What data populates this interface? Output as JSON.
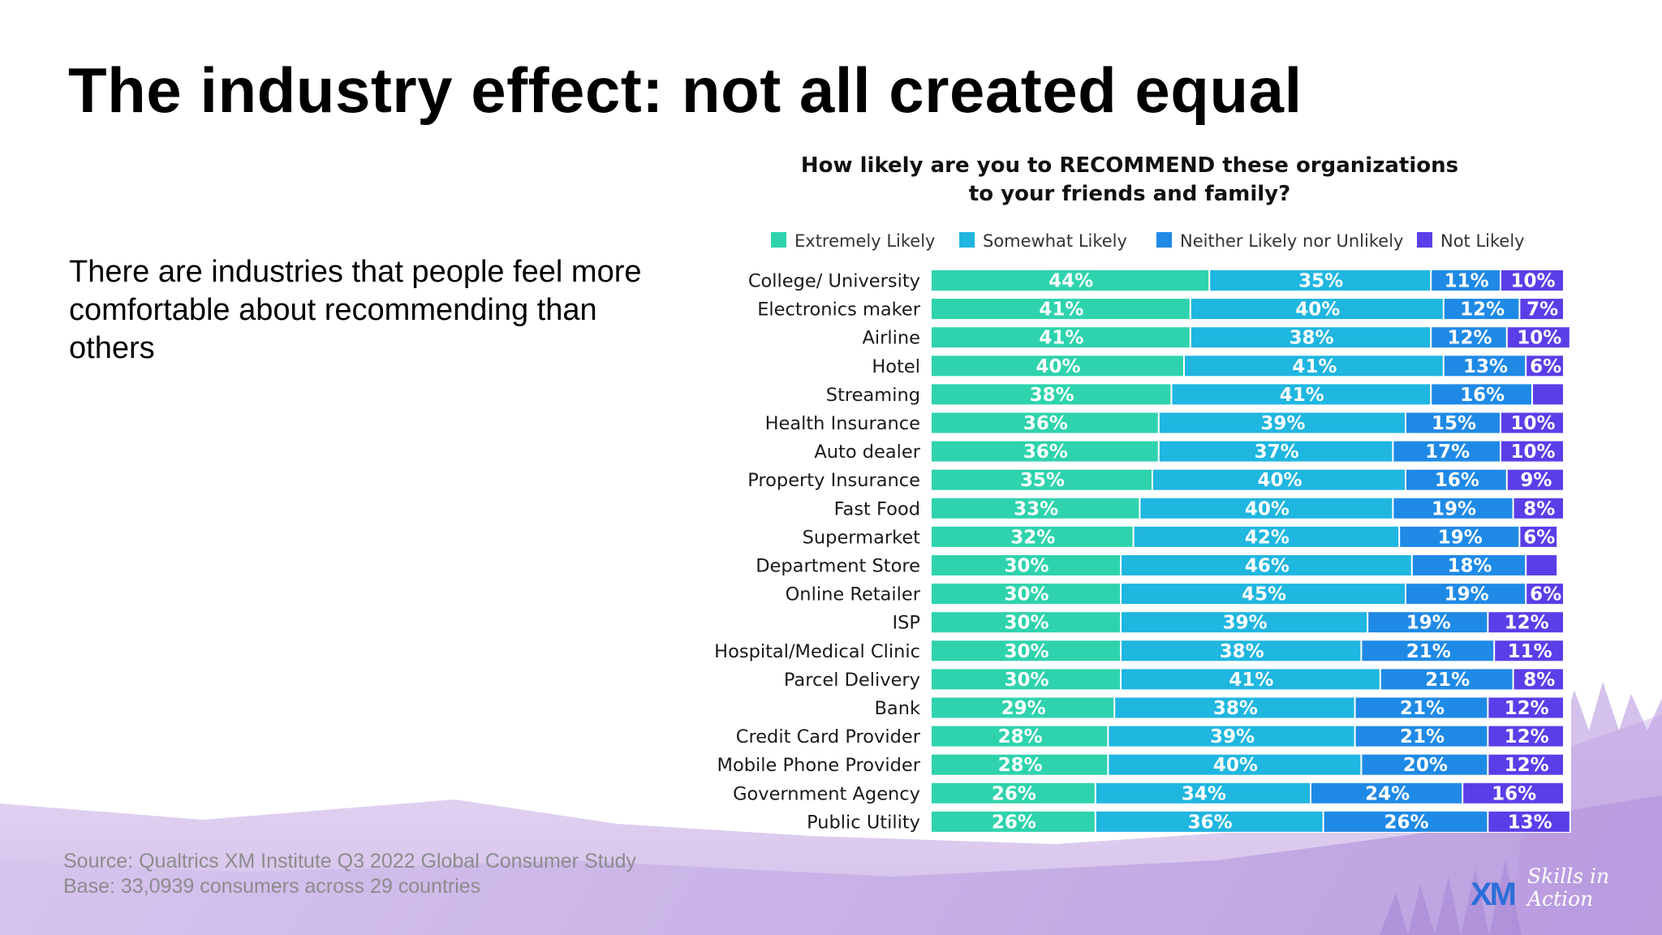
{
  "slide": {
    "title": "The industry effect:  not all created equal",
    "body": "There are industries that people feel more comfortable about recommending than others",
    "source_line1": "Source: Qualtrics XM Institute Q3 2022 Global Consumer Study",
    "source_line2": "Base: 33,0939 consumers across 29 countries",
    "logo": {
      "mark": "XM",
      "tagline": "Skills in Action"
    }
  },
  "chart_data": {
    "type": "bar",
    "orientation": "horizontal",
    "stacked": true,
    "title_lines": [
      "How likely are you to RECOMMEND these organizations",
      "to your friends and family?"
    ],
    "legend_position": "top",
    "categories": [
      "College/ University",
      "Electronics maker",
      "Airline",
      "Hotel",
      "Streaming",
      "Health Insurance",
      "Auto dealer",
      "Property Insurance",
      "Fast Food",
      "Supermarket",
      "Department Store",
      "Online Retailer",
      "ISP",
      "Hospital/Medical Clinic",
      "Parcel Delivery",
      "Bank",
      "Credit Card Provider",
      "Mobile Phone Provider",
      "Government Agency",
      "Public Utility"
    ],
    "series": [
      {
        "name": "Extremely Likely",
        "color": "#2ed3ad",
        "values": [
          44,
          41,
          41,
          40,
          38,
          36,
          36,
          35,
          33,
          32,
          30,
          30,
          30,
          30,
          30,
          29,
          28,
          28,
          26,
          26
        ],
        "labels": [
          "44%",
          "41%",
          "41%",
          "40%",
          "38%",
          "36%",
          "36%",
          "35%",
          "33%",
          "32%",
          "30%",
          "30%",
          "30%",
          "30%",
          "30%",
          "29%",
          "28%",
          "28%",
          "26%",
          "26%"
        ]
      },
      {
        "name": "Somewhat Likely",
        "color": "#1fb6e0",
        "values": [
          35,
          40,
          38,
          41,
          41,
          39,
          37,
          40,
          40,
          42,
          46,
          45,
          39,
          38,
          41,
          38,
          39,
          40,
          34,
          36
        ],
        "labels": [
          "35%",
          "40%",
          "38%",
          "41%",
          "41%",
          "39%",
          "37%",
          "40%",
          "40%",
          "42%",
          "46%",
          "45%",
          "39%",
          "38%",
          "41%",
          "38%",
          "39%",
          "40%",
          "34%",
          "36%"
        ]
      },
      {
        "name": "Neither Likely nor Unlikely",
        "color": "#1f8ae6",
        "values": [
          11,
          12,
          12,
          13,
          16,
          15,
          17,
          16,
          19,
          19,
          18,
          19,
          19,
          21,
          21,
          21,
          21,
          20,
          24,
          26
        ],
        "labels": [
          "11%",
          "12%",
          "12%",
          "13%",
          "16%",
          "15%",
          "17%",
          "16%",
          "19%",
          "19%",
          "18%",
          "19%",
          "19%",
          "21%",
          "21%",
          "21%",
          "21%",
          "20%",
          "24%",
          "26%"
        ]
      },
      {
        "name": "Not Likely",
        "color": "#5b3ee8",
        "values": [
          10,
          7,
          10,
          6,
          5,
          10,
          10,
          9,
          8,
          6,
          5,
          6,
          12,
          11,
          8,
          12,
          12,
          12,
          16,
          13
        ],
        "labels": [
          "10%",
          "7%",
          "10%",
          "6%",
          "",
          "10%",
          "10%",
          "9%",
          "8%",
          "6%",
          "",
          "6%",
          "12%",
          "11%",
          "8%",
          "12%",
          "12%",
          "12%",
          "16%",
          "13%"
        ]
      }
    ],
    "xlim": [
      0,
      100
    ],
    "grid": false
  }
}
